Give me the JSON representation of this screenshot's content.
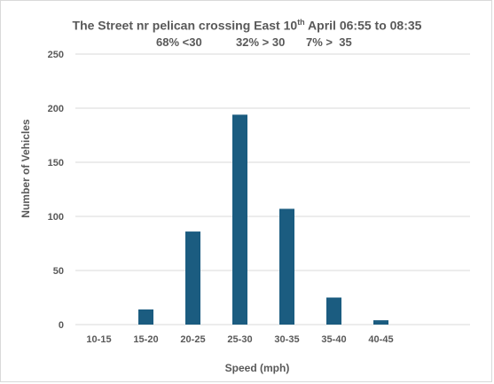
{
  "chart_data": {
    "type": "bar",
    "title": {
      "prefix": "The Street nr pelican crossing East 10",
      "superscript": "th",
      "suffix": " April 06:55 to 08:35"
    },
    "subtitle_parts": [
      "68% <30",
      "32% > 30",
      "7% >  35"
    ],
    "categories": [
      "10-15",
      "15-20",
      "20-25",
      "25-30",
      "30-35",
      "35-40",
      "40-45"
    ],
    "values": [
      0,
      14,
      86,
      194,
      107,
      25,
      4
    ],
    "xlabel": "Speed (mph)",
    "ylabel": "Number of Vehicles",
    "ylim": [
      0,
      250
    ],
    "yticks": [
      0,
      50,
      100,
      150,
      200,
      250
    ],
    "grid": true,
    "legend": "none",
    "bar_color": "#1b5c80",
    "grid_color": "#d9d9d9"
  }
}
